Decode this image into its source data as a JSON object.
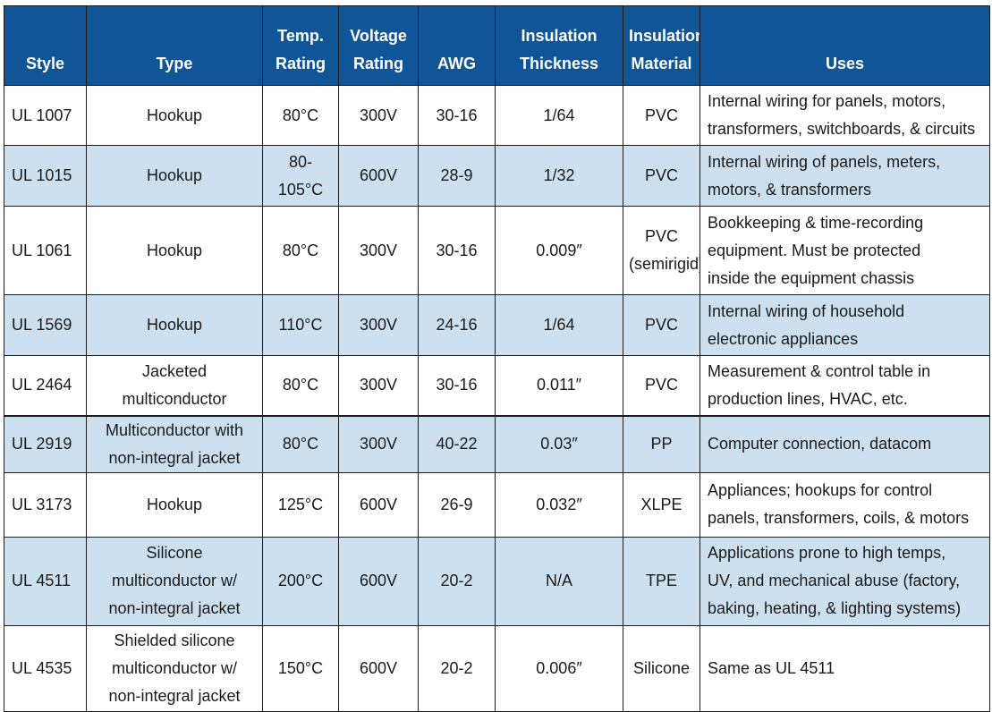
{
  "table": {
    "headers": {
      "style": "Style",
      "type": "Type",
      "temp": [
        "Temp.",
        "Rating"
      ],
      "voltage": [
        "Voltage",
        "Rating"
      ],
      "awg": "AWG",
      "thickness": [
        "Insulation",
        "Thickness"
      ],
      "material": [
        "Insulation",
        "Material"
      ],
      "uses": "Uses"
    },
    "rows": [
      {
        "style": "UL 1007",
        "type": [
          "Hookup"
        ],
        "temp": [
          "80°C"
        ],
        "voltage": "300V",
        "awg": "30-16",
        "thickness": "1/64",
        "material": [
          "PVC"
        ],
        "uses": [
          "Internal wiring for panels, motors,",
          "transformers, switchboards, & circuits"
        ]
      },
      {
        "style": "UL 1015",
        "type": [
          "Hookup"
        ],
        "temp": [
          "80-",
          "105°C"
        ],
        "voltage": "600V",
        "awg": "28-9",
        "thickness": "1/32",
        "material": [
          "PVC"
        ],
        "uses": [
          "Internal wiring of panels, meters,",
          "motors, & transformers"
        ]
      },
      {
        "style": "UL 1061",
        "type": [
          "Hookup"
        ],
        "temp": [
          "80°C"
        ],
        "voltage": "300V",
        "awg": "30-16",
        "thickness": "0.009″",
        "material": [
          "PVC",
          "(semirigid)"
        ],
        "uses": [
          "Bookkeeping & time-recording",
          "equipment. Must be protected",
          "inside the equipment chassis"
        ]
      },
      {
        "style": "UL 1569",
        "type": [
          "Hookup"
        ],
        "temp": [
          "110°C"
        ],
        "voltage": "300V",
        "awg": "24-16",
        "thickness": "1/64",
        "material": [
          "PVC"
        ],
        "uses": [
          "Internal wiring of household",
          "electronic appliances"
        ]
      },
      {
        "style": "UL 2464",
        "type": [
          "Jacketed",
          "multiconductor"
        ],
        "temp": [
          "80°C"
        ],
        "voltage": "300V",
        "awg": "30-16",
        "thickness": "0.011″",
        "material": [
          "PVC"
        ],
        "uses": [
          "Measurement & control table in",
          "production lines, HVAC, etc."
        ]
      },
      {
        "style": "UL 2919",
        "type": [
          "Multiconductor with",
          "non-integral jacket"
        ],
        "temp": [
          "80°C"
        ],
        "voltage": "300V",
        "awg": "40-22",
        "thickness": "0.03″",
        "material": [
          "PP"
        ],
        "uses": [
          "Computer connection, datacom"
        ]
      },
      {
        "style": "UL 3173",
        "type": [
          "Hookup"
        ],
        "temp": [
          "125°C"
        ],
        "voltage": "600V",
        "awg": "26-9",
        "thickness": "0.032″",
        "material": [
          "XLPE"
        ],
        "uses": [
          "Appliances; hookups for control",
          "panels, transformers, coils, & motors"
        ]
      },
      {
        "style": "UL 4511",
        "type": [
          "Silicone",
          "multiconductor w/",
          "non-integral jacket"
        ],
        "temp": [
          "200°C"
        ],
        "voltage": "600V",
        "awg": "20-2",
        "thickness": "N/A",
        "material": [
          "TPE"
        ],
        "uses": [
          "Applications prone to high temps,",
          "UV, and mechanical abuse (factory,",
          "baking, heating, & lighting systems)"
        ]
      },
      {
        "style": "UL 4535",
        "type": [
          "Shielded silicone",
          "multiconductor w/",
          "non-integral jacket"
        ],
        "temp": [
          "150°C"
        ],
        "voltage": "600V",
        "awg": "20-2",
        "thickness": "0.006″",
        "material": [
          "Silicone"
        ],
        "uses": [
          "Same as UL 4511"
        ]
      }
    ]
  }
}
